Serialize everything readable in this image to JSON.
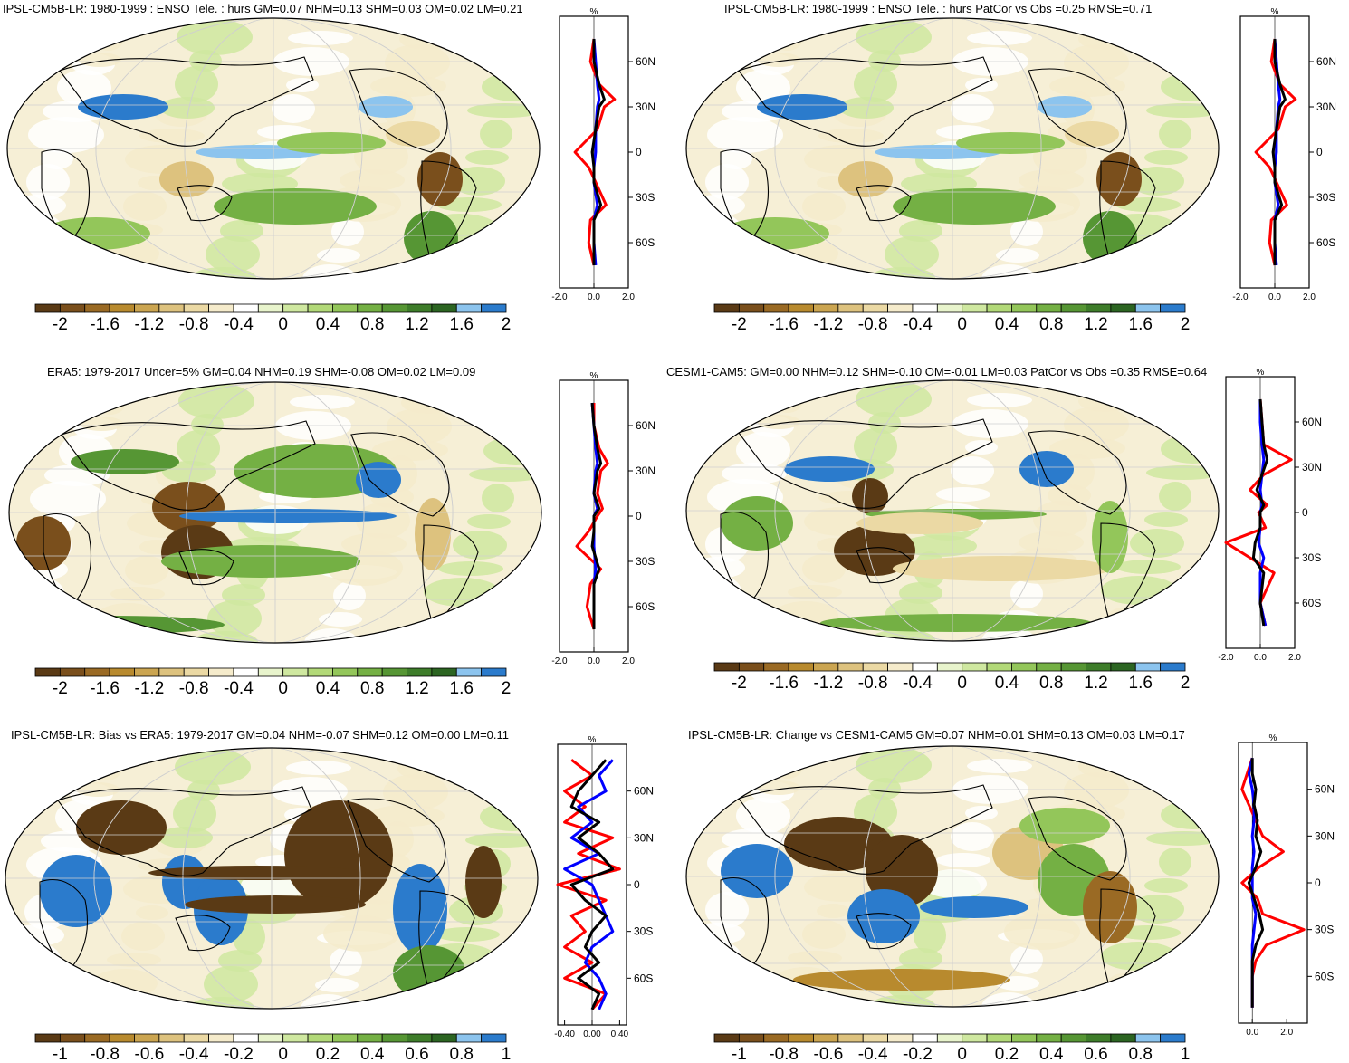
{
  "colormaps": {
    "levels": [
      "#5a3a15",
      "#7a4f1c",
      "#9a6a24",
      "#b88a2e",
      "#cba551",
      "#ddc27e",
      "#ebd9a4",
      "#f5ebcb",
      "#ffffff",
      "#e8f4cc",
      "#cfe8a0",
      "#b2d978",
      "#93c65a",
      "#74b044",
      "#569634",
      "#3e7d2a",
      "#2c6522",
      "#8cc4ee",
      "#2b7bcc"
    ]
  },
  "profile_colors": {
    "red": "#ff0000",
    "blue": "#0000ff",
    "black": "#000000"
  },
  "panels": [
    {
      "id": "p1",
      "title": "IPSL-CM5B-LR: 1980-1999 : ENSO Tele. : hurs GM=0.07 NHM=0.13 SHM=0.03 OM=0.02 LM=0.21",
      "cbar_labels": [
        "-2",
        "-1.6",
        "-1.2",
        "-0.8",
        "-0.4",
        "0",
        "0.4",
        "0.8",
        "1.2",
        "1.6",
        "2"
      ],
      "profile": {
        "unit": "%",
        "xticks": [
          "-2.0",
          "0.0",
          "2.0"
        ],
        "xrange": [
          -2,
          2
        ],
        "lat_labels": [
          "60N",
          "30N",
          "0",
          "30S",
          "60S"
        ]
      }
    },
    {
      "id": "p2",
      "title": "IPSL-CM5B-LR: 1980-1999 : ENSO Tele. : hurs PatCor vs Obs =0.25 RMSE=0.71",
      "cbar_labels": [
        "-2",
        "-1.6",
        "-1.2",
        "-0.8",
        "-0.4",
        "0",
        "0.4",
        "0.8",
        "1.2",
        "1.6",
        "2"
      ],
      "profile": {
        "unit": "%",
        "xticks": [
          "-2.0",
          "0.0",
          "2.0"
        ],
        "xrange": [
          -2,
          2
        ],
        "lat_labels": [
          "60N",
          "30N",
          "0",
          "30S",
          "60S"
        ]
      }
    },
    {
      "id": "p3",
      "title": "ERA5: 1979-2017 Uncer=5% GM=0.04 NHM=0.19 SHM=-0.08 OM=0.02 LM=0.09",
      "cbar_labels": [
        "-2",
        "-1.6",
        "-1.2",
        "-0.8",
        "-0.4",
        "0",
        "0.4",
        "0.8",
        "1.2",
        "1.6",
        "2"
      ],
      "profile": {
        "unit": "%",
        "xticks": [
          "-2.0",
          "0.0",
          "2.0"
        ],
        "xrange": [
          -2,
          2
        ],
        "lat_labels": [
          "60N",
          "30N",
          "0",
          "30S",
          "60S"
        ]
      }
    },
    {
      "id": "p4",
      "title": "CESM1-CAM5: GM=0.00 NHM=0.12 SHM=-0.10 OM=-0.01 LM=0.03 PatCor vs Obs =0.35 RMSE=0.64",
      "cbar_labels": [
        "-2",
        "-1.6",
        "-1.2",
        "-0.8",
        "-0.4",
        "0",
        "0.4",
        "0.8",
        "1.2",
        "1.6",
        "2"
      ],
      "profile": {
        "unit": "%",
        "xticks": [
          "-2.0",
          "0.0",
          "2.0"
        ],
        "xrange": [
          -2,
          2
        ],
        "lat_labels": [
          "60N",
          "30N",
          "0",
          "30S",
          "60S"
        ]
      }
    },
    {
      "id": "p5",
      "title": "IPSL-CM5B-LR: Bias vs ERA5: 1979-2017 GM=0.04 NHM=-0.07 SHM=0.12 OM=0.00 LM=0.11",
      "cbar_labels": [
        "-1",
        "-0.8",
        "-0.6",
        "-0.4",
        "-0.2",
        "0",
        "0.2",
        "0.4",
        "0.6",
        "0.8",
        "1"
      ],
      "profile": {
        "unit": "%",
        "xticks": [
          "-0.40",
          "0.00",
          "0.40"
        ],
        "xrange": [
          -0.5,
          0.5
        ],
        "lat_labels": [
          "60N",
          "30N",
          "0",
          "30S",
          "60S"
        ]
      }
    },
    {
      "id": "p6",
      "title": "IPSL-CM5B-LR: Change vs CESM1-CAM5 GM=0.07 NHM=0.01 SHM=0.13 OM=0.03 LM=0.17",
      "cbar_labels": [
        "-1",
        "-0.8",
        "-0.6",
        "-0.4",
        "-0.2",
        "0",
        "0.2",
        "0.4",
        "0.6",
        "0.8",
        "1"
      ],
      "profile": {
        "unit": "%",
        "xticks": [
          "0.0",
          "2.0"
        ],
        "xrange": [
          -0.8,
          3.2
        ],
        "lat_labels": [
          "60N",
          "30N",
          "0",
          "30S",
          "60S"
        ]
      }
    }
  ],
  "chart_data": [
    {
      "type": "heatmap",
      "title": "IPSL-CM5B-LR: 1980-1999 : ENSO Tele. : hurs GM=0.07 NHM=0.13 SHM=0.03 OM=0.02 LM=0.21",
      "colorbar": [
        -2,
        2
      ],
      "profile_lat": [
        75,
        60,
        45,
        35,
        30,
        15,
        0,
        -10,
        -20,
        -35,
        -45,
        -60,
        -75
      ],
      "profile_red": [
        0.0,
        -0.2,
        0.3,
        1.2,
        0.6,
        0.2,
        -1.1,
        -0.3,
        0.1,
        0.7,
        -0.2,
        -0.3,
        0.0
      ],
      "profile_blue": [
        0.0,
        0.1,
        0.2,
        0.3,
        0.2,
        0.1,
        0.1,
        0.0,
        0.0,
        0.2,
        0.0,
        0.0,
        0.1
      ],
      "profile_black": [
        0.0,
        0.0,
        0.3,
        0.6,
        0.3,
        0.1,
        -0.1,
        0.0,
        0.0,
        0.4,
        0.0,
        0.0,
        0.0
      ]
    },
    {
      "type": "heatmap",
      "title": "IPSL-CM5B-LR: 1980-1999 : ENSO Tele. : hurs PatCor vs Obs =0.25 RMSE=0.71",
      "colorbar": [
        -2,
        2
      ],
      "profile_lat": [
        75,
        60,
        45,
        35,
        30,
        15,
        0,
        -10,
        -20,
        -35,
        -45,
        -60,
        -75
      ],
      "profile_red": [
        0.0,
        -0.2,
        0.3,
        1.2,
        0.6,
        0.2,
        -1.1,
        -0.3,
        0.1,
        0.7,
        -0.2,
        -0.3,
        0.0
      ],
      "profile_blue": [
        0.0,
        0.1,
        0.2,
        0.3,
        0.2,
        0.1,
        0.1,
        0.0,
        0.0,
        0.2,
        0.0,
        0.0,
        0.1
      ],
      "profile_black": [
        0.0,
        0.0,
        0.3,
        0.6,
        0.3,
        0.1,
        -0.1,
        0.0,
        0.0,
        0.4,
        0.0,
        0.0,
        0.0
      ]
    },
    {
      "type": "heatmap",
      "title": "ERA5: 1979-2017 Uncer=5% GM=0.04 NHM=0.19 SHM=-0.08 OM=0.02 LM=0.09",
      "colorbar": [
        -2,
        2
      ],
      "profile_lat": [
        75,
        60,
        45,
        35,
        30,
        15,
        5,
        0,
        -10,
        -20,
        -35,
        -45,
        -60,
        -75
      ],
      "profile_red": [
        0.0,
        0.0,
        0.3,
        0.8,
        0.4,
        0.2,
        0.5,
        0.2,
        -0.3,
        -1.0,
        0.4,
        -0.2,
        -0.4,
        0.0
      ],
      "profile_blue": [
        -0.1,
        0.0,
        0.1,
        0.2,
        0.1,
        0.0,
        0.2,
        0.0,
        0.0,
        0.0,
        0.1,
        0.0,
        0.0,
        0.0
      ],
      "profile_black": [
        -0.1,
        0.0,
        0.2,
        0.4,
        0.2,
        0.0,
        0.3,
        0.0,
        0.0,
        -0.1,
        0.3,
        0.0,
        0.0,
        0.0
      ]
    },
    {
      "type": "heatmap",
      "title": "CESM1-CAM5: GM=0.00 NHM=0.12 SHM=-0.10 OM=-0.01 LM=0.03 PatCor vs Obs =0.35 RMSE=0.64",
      "colorbar": [
        -2,
        2
      ],
      "profile_lat": [
        75,
        60,
        45,
        35,
        25,
        15,
        5,
        0,
        -10,
        -20,
        -30,
        -40,
        -60,
        -75
      ],
      "profile_red": [
        0.0,
        0.1,
        0.2,
        1.8,
        0.2,
        -0.6,
        0.4,
        -0.1,
        0.3,
        -2.0,
        -0.6,
        0.8,
        0.0,
        0.3
      ],
      "profile_blue": [
        0.0,
        0.0,
        0.1,
        0.2,
        0.1,
        0.0,
        0.1,
        0.0,
        0.0,
        -0.1,
        0.2,
        0.0,
        0.0,
        0.3
      ],
      "profile_black": [
        0.0,
        0.1,
        0.2,
        0.4,
        0.1,
        -0.2,
        0.2,
        0.0,
        0.0,
        -0.3,
        -0.4,
        0.2,
        0.0,
        0.2
      ]
    },
    {
      "type": "heatmap",
      "title": "IPSL-CM5B-LR: Bias vs ERA5: 1979-2017 GM=0.04 NHM=-0.07 SHM=0.12 OM=0.00 LM=0.11",
      "colorbar": [
        -1,
        1
      ],
      "profile_lat": [
        80,
        70,
        60,
        50,
        40,
        30,
        20,
        10,
        0,
        -10,
        -20,
        -30,
        -40,
        -50,
        -60,
        -70,
        -80
      ],
      "profile_red": [
        -0.3,
        0.0,
        -0.4,
        -0.1,
        -0.4,
        0.3,
        -0.2,
        0.4,
        -0.5,
        0.2,
        -0.3,
        -0.1,
        -0.4,
        0.0,
        -0.4,
        0.2,
        0.0
      ],
      "profile_blue": [
        0.3,
        0.1,
        0.2,
        -0.2,
        0.0,
        -0.3,
        0.1,
        -0.4,
        0.0,
        0.1,
        0.2,
        0.3,
        0.0,
        -0.1,
        0.1,
        0.2,
        0.1
      ],
      "profile_black": [
        0.2,
        0.0,
        -0.2,
        -0.3,
        0.1,
        -0.2,
        0.1,
        0.3,
        -0.3,
        -0.1,
        0.2,
        0.0,
        -0.1,
        0.1,
        -0.2,
        0.1,
        0.0
      ]
    },
    {
      "type": "heatmap",
      "title": "IPSL-CM5B-LR: Change vs CESM1-CAM5 GM=0.07 NHM=0.01 SHM=0.13 OM=0.03 LM=0.17",
      "colorbar": [
        -1,
        1
      ],
      "profile_lat": [
        80,
        70,
        60,
        50,
        40,
        30,
        20,
        10,
        0,
        -10,
        -20,
        -30,
        -40,
        -50,
        -60,
        -70,
        -80
      ],
      "profile_red": [
        0.0,
        -0.3,
        -0.6,
        -0.2,
        0.2,
        0.6,
        1.8,
        0.4,
        -0.6,
        0.3,
        0.6,
        3.0,
        0.8,
        0.2,
        0.0,
        0.0,
        0.0
      ],
      "profile_blue": [
        0.0,
        -0.2,
        0.0,
        0.1,
        0.1,
        0.0,
        0.1,
        0.0,
        0.0,
        0.0,
        0.2,
        0.1,
        0.0,
        0.0,
        0.0,
        0.0,
        0.0
      ],
      "profile_black": [
        0.0,
        0.0,
        0.2,
        0.1,
        0.3,
        0.2,
        0.5,
        0.2,
        -0.2,
        0.1,
        0.4,
        0.6,
        0.2,
        0.0,
        0.0,
        0.0,
        0.0
      ]
    }
  ]
}
